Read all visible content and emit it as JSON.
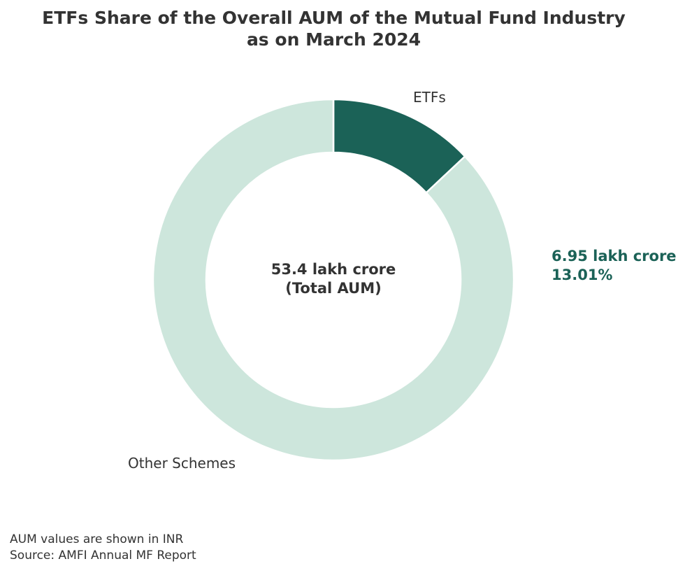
{
  "chart_data": {
    "type": "pie",
    "donut": true,
    "title": [
      "ETFs Share of the Overall AUM of the Mutual Fund Industry",
      "as on March 2024"
    ],
    "slices": [
      {
        "label": "ETFs",
        "percent": 13.01,
        "color": "#1b6257"
      },
      {
        "label": "Other Schemes",
        "percent": 86.99,
        "color": "#cde6dc"
      }
    ],
    "start_angle": "top, clockwise",
    "center_label": [
      "53.4 lakh crore",
      "(Total AUM)"
    ],
    "annotation": {
      "value": "6.95 lakh crore",
      "percent": "13.01%",
      "color": "#1b6257"
    },
    "footer": [
      "AUM values are shown in INR",
      "Source: AMFI Annual MF Report"
    ]
  }
}
